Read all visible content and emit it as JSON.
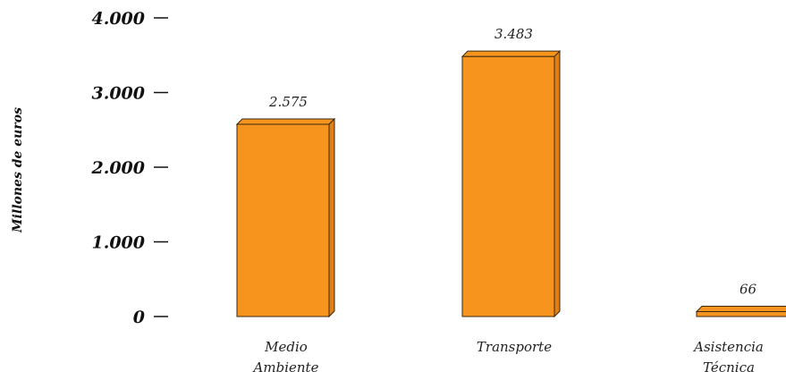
{
  "chart_data": {
    "type": "bar",
    "title": "",
    "ylabel": "Millones de euros",
    "xlabel": "",
    "ylim": [
      0,
      4000
    ],
    "yticks": [
      0,
      1000,
      2000,
      3000,
      4000
    ],
    "ytick_labels": [
      "0",
      "1.000",
      "2.000",
      "3.000",
      "4.000"
    ],
    "categories": [
      [
        "Medio",
        "Ambiente"
      ],
      [
        "Transporte"
      ],
      [
        "Asistencia",
        "Técnica"
      ]
    ],
    "values": [
      2575,
      3483,
      66
    ],
    "value_labels": [
      "2.575",
      "3.483",
      "66"
    ],
    "bar_color": "#F7941D",
    "bar_edge_color": "#3a2a10",
    "grid": false,
    "legend": "none"
  }
}
